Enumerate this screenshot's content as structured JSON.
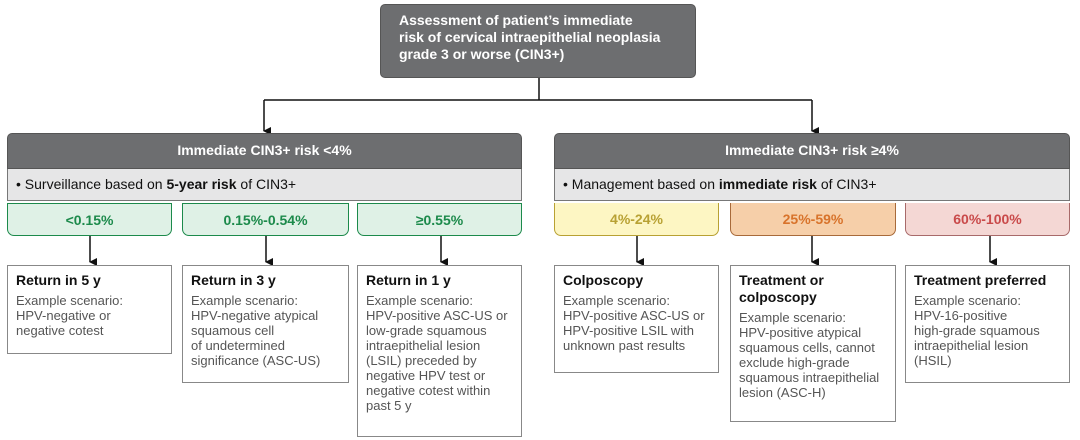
{
  "top": {
    "lines": [
      "Assessment of patient’s immediate",
      "risk of cervical intraepithelial neoplasia",
      "grade 3 or worse (CIN3+)"
    ]
  },
  "left": {
    "header": "Immediate CIN3+ risk <4%",
    "sub_prefix": "• Surveillance based on ",
    "sub_bold": "5-year risk",
    "sub_suffix": " of CIN3+"
  },
  "right": {
    "header": "Immediate CIN3+ risk ≥4%",
    "sub_prefix": "• Management based on ",
    "sub_bold": "immediate risk",
    "sub_suffix": " of CIN3+"
  },
  "risks": [
    {
      "label": "<0.15%",
      "color": "#1c8a4b"
    },
    {
      "label": "0.15%-0.54%",
      "color": "#1c8a4b"
    },
    {
      "label": "≥0.55%",
      "color": "#1c8a4b"
    },
    {
      "label": "4%-24%",
      "color": "#b8a133"
    },
    {
      "label": "25%-59%",
      "color": "#d8732b"
    },
    {
      "label": "60%-100%",
      "color": "#c94a4a"
    }
  ],
  "cards": [
    {
      "title": "Return in 5 y",
      "example_label": "Example scenario:",
      "lines": [
        "HPV-negative or",
        "negative cotest"
      ]
    },
    {
      "title": "Return in 3 y",
      "example_label": "Example scenario:",
      "lines": [
        "HPV-negative atypical",
        "squamous cell",
        "of undetermined",
        "significance (ASC-US)"
      ]
    },
    {
      "title": "Return in 1 y",
      "example_label": "Example scenario:",
      "lines": [
        "HPV-positive ASC-US or",
        "low-grade squamous",
        "intraepithelial lesion",
        "(LSIL) preceded by",
        "negative HPV test or",
        "negative cotest within",
        "past 5 y"
      ]
    },
    {
      "title": "Colposcopy",
      "example_label": "Example scenario:",
      "lines": [
        "HPV-positive ASC-US or",
        "HPV-positive LSIL with",
        "unknown past results"
      ]
    },
    {
      "title_lines": [
        "Treatment or",
        "colposcopy"
      ],
      "example_label": "Example scenario:",
      "lines": [
        "HPV-positive atypical",
        "squamous cells, cannot",
        "exclude high-grade",
        "squamous intraepithelial",
        "lesion (ASC-H)"
      ]
    },
    {
      "title": "Treatment preferred",
      "example_label": "Example scenario:",
      "lines": [
        "HPV-16-positive",
        "high-grade squamous",
        "intraepithelial lesion",
        "(HSIL)"
      ]
    }
  ]
}
